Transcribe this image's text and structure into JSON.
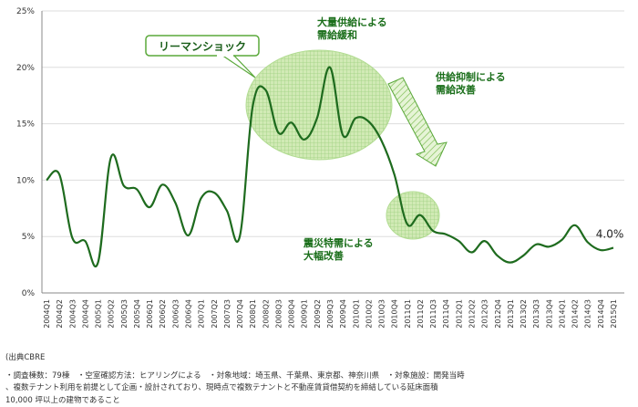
{
  "chart_data": {
    "type": "line",
    "ylim": [
      0,
      25
    ],
    "yticks": [
      "0%",
      "5%",
      "10%",
      "15%",
      "20%",
      "25%"
    ],
    "ytick_values": [
      0,
      5,
      10,
      15,
      20,
      25
    ],
    "categories": [
      "2004Q1",
      "2004Q2",
      "2004Q3",
      "2004Q4",
      "2005Q1",
      "2005Q2",
      "2005Q3",
      "2005Q4",
      "2006Q1",
      "2006Q2",
      "2006Q3",
      "2006Q4",
      "2007Q1",
      "2007Q2",
      "2007Q3",
      "2007Q4",
      "2008Q1",
      "2008Q2",
      "2008Q3",
      "2008Q4",
      "2009Q1",
      "2009Q2",
      "2009Q3",
      "2009Q4",
      "2010Q1",
      "2010Q2",
      "2010Q3",
      "2010Q4",
      "2011Q1",
      "2011Q2",
      "2011Q3",
      "2011Q4",
      "2012Q1",
      "2012Q2",
      "2012Q3",
      "2012Q4",
      "2013Q1",
      "2013Q2",
      "2013Q3",
      "2013Q4",
      "2014Q1",
      "2014Q2",
      "2014Q3",
      "2014Q4",
      "2015Q1"
    ],
    "values": [
      10.0,
      10.5,
      4.9,
      4.6,
      2.7,
      12.0,
      9.5,
      9.2,
      7.6,
      9.6,
      8.0,
      5.1,
      8.4,
      8.9,
      7.3,
      5.0,
      16.5,
      18.0,
      14.2,
      15.1,
      13.6,
      15.5,
      20.0,
      14.0,
      15.5,
      15.2,
      13.5,
      10.5,
      6.1,
      6.9,
      5.5,
      5.2,
      4.6,
      3.6,
      4.6,
      3.3,
      2.7,
      3.3,
      4.3,
      4.1,
      4.7,
      6.0,
      4.5,
      3.8,
      4.0
    ],
    "grid": true,
    "color": "#1e6b1e",
    "end_label": "4.0%",
    "annotations": {
      "lehman_box": "リーマンショック",
      "oversupply_line1": "大量供給による",
      "oversupply_line2": "需給緩和",
      "restraint_line1": "供給抑制による",
      "restraint_line2": "需給改善",
      "quake_line1": "震災特需による",
      "quake_line2": "大幅改善"
    }
  },
  "notes": {
    "source": "(出典CBRE",
    "line1": "・調査棟数：79棟　・空室確認方法：ヒアリングによる　・対象地域：埼玉県、千葉県、東京都、神奈川県　・対象施設：開発当時",
    "line2": "、複数テナント利用を前提として企画・設計されており、現時点で複数テナントと不動産賃貸借契約を締結している延床面積",
    "line3": "10,000 坪以上の建物であること"
  }
}
